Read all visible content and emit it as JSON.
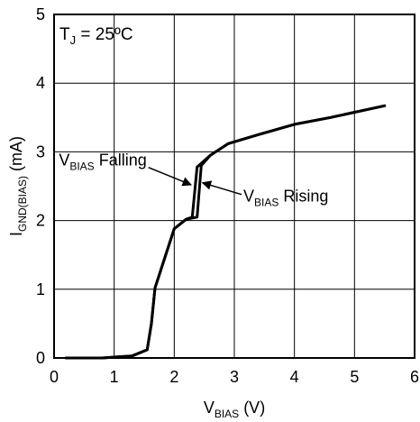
{
  "chart_data": {
    "type": "line",
    "xlabel": {
      "main": "V",
      "sub": "BIAS",
      "tail": " (V)"
    },
    "ylabel": {
      "main": "I",
      "sub": "GND(BIAS)",
      "tail": " (mA)"
    },
    "xlim": [
      0,
      6
    ],
    "ylim": [
      0,
      5
    ],
    "xticks": [
      "0",
      "1",
      "2",
      "3",
      "4",
      "5",
      "6"
    ],
    "yticks": [
      "0",
      "1",
      "2",
      "3",
      "4",
      "5"
    ],
    "grid": true,
    "condition": {
      "main": "T",
      "sub": "J",
      "tail": " = 25ºC"
    },
    "series": [
      {
        "name": "VBIAS Rising",
        "x": [
          0.2,
          0.8,
          1.3,
          1.55,
          1.62,
          1.68,
          2.0,
          2.2,
          2.38,
          2.45,
          2.6,
          2.9,
          3.4,
          4.0,
          4.6,
          5.5
        ],
        "y": [
          0.0,
          0.0,
          0.03,
          0.12,
          0.5,
          1.02,
          1.88,
          2.02,
          2.05,
          2.8,
          2.95,
          3.12,
          3.25,
          3.4,
          3.5,
          3.67
        ]
      },
      {
        "name": "VBIAS Falling",
        "x": [
          0.2,
          0.8,
          1.3,
          1.55,
          1.62,
          1.68,
          2.0,
          2.2,
          2.3,
          2.38,
          2.6,
          2.9,
          3.4,
          4.0,
          4.6,
          5.5
        ],
        "y": [
          0.0,
          0.0,
          0.03,
          0.12,
          0.5,
          1.02,
          1.88,
          2.02,
          2.05,
          2.78,
          2.95,
          3.12,
          3.25,
          3.4,
          3.5,
          3.67
        ]
      }
    ],
    "annotations": [
      {
        "main": "V",
        "sub": "BIAS",
        "tail": " Falling",
        "x": 0.08,
        "y": 2.8,
        "anchor": "start",
        "target_x": 2.28,
        "target_y": 2.52
      },
      {
        "main": "V",
        "sub": "BIAS",
        "tail": " Rising",
        "x": 3.15,
        "y": 2.28,
        "anchor": "start",
        "target_x": 2.47,
        "target_y": 2.55
      }
    ]
  }
}
